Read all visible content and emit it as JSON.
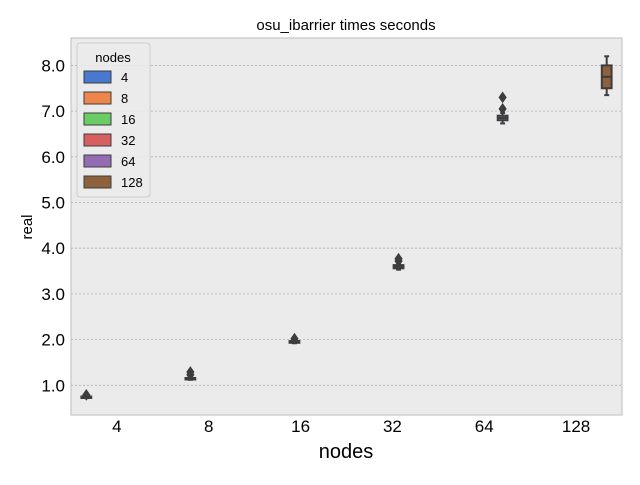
{
  "chart_data": {
    "type": "box",
    "title": "osu_ibarrier times seconds",
    "xlabel": "nodes",
    "ylabel": "real",
    "categories": [
      "4",
      "8",
      "16",
      "32",
      "64",
      "128"
    ],
    "yticks": [
      1.0,
      2.0,
      3.0,
      4.0,
      5.0,
      6.0,
      7.0,
      8.0
    ],
    "ytick_labels": [
      "1.0",
      "2.0",
      "3.0",
      "4.0",
      "5.0",
      "6.0",
      "7.0",
      "8.0"
    ],
    "ylim": [
      0.35,
      8.6
    ],
    "grid": true,
    "legend": {
      "title": "nodes",
      "position": "top-left"
    },
    "series": [
      {
        "name": "4",
        "color": "#4878d0",
        "category": "4",
        "whislo": 0.72,
        "q1": 0.73,
        "med": 0.745,
        "q3": 0.755,
        "whishi": 0.77,
        "fliers": [
          0.79
        ]
      },
      {
        "name": "8",
        "color": "#ee854a",
        "category": "8",
        "whislo": 1.12,
        "q1": 1.13,
        "med": 1.14,
        "q3": 1.16,
        "whishi": 1.17,
        "fliers": [
          1.23,
          1.29
        ]
      },
      {
        "name": "16",
        "color": "#6acc64",
        "category": "16",
        "whislo": 1.92,
        "q1": 1.93,
        "med": 1.95,
        "q3": 1.97,
        "whishi": 1.98,
        "fliers": [
          2.02
        ]
      },
      {
        "name": "32",
        "color": "#d65f5f",
        "category": "32",
        "whislo": 3.53,
        "q1": 3.56,
        "med": 3.6,
        "q3": 3.63,
        "whishi": 3.66,
        "fliers": [
          3.72,
          3.77
        ]
      },
      {
        "name": "64",
        "color": "#956cb4",
        "category": "64",
        "whislo": 6.73,
        "q1": 6.8,
        "med": 6.85,
        "q3": 6.9,
        "whishi": 6.96,
        "fliers": [
          7.05,
          7.3
        ]
      },
      {
        "name": "128",
        "color": "#8c613c",
        "category": "128",
        "whislo": 7.35,
        "q1": 7.5,
        "med": 7.75,
        "q3": 8.0,
        "whishi": 8.2,
        "fliers": []
      }
    ]
  }
}
